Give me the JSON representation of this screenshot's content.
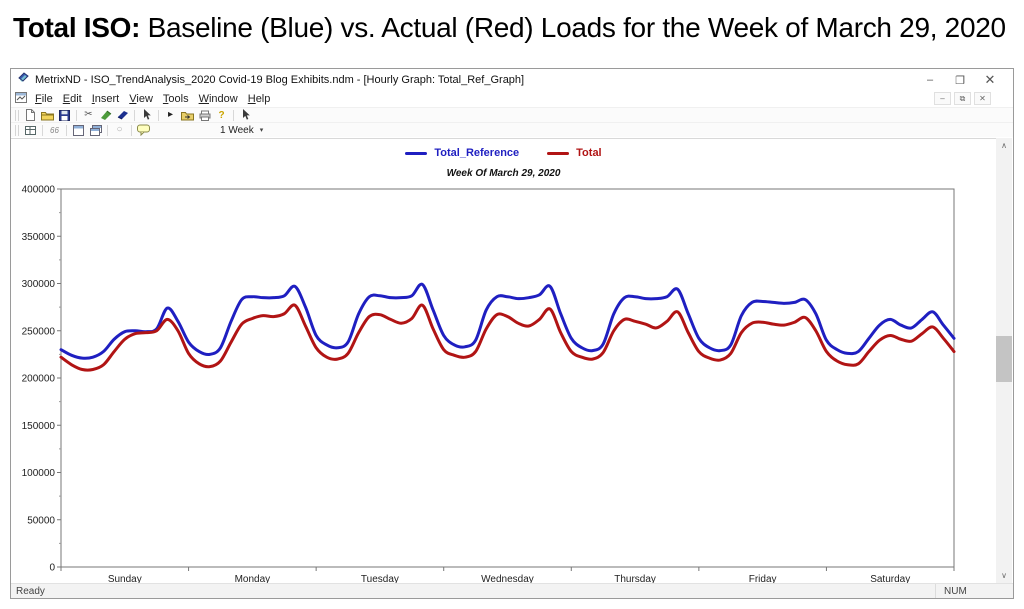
{
  "page": {
    "heading_bold": "Total ISO:",
    "heading_rest": " Baseline (Blue) vs. Actual (Red) Loads for the Week of March 29, 2020"
  },
  "window": {
    "title": "MetrixND - ISO_TrendAnalysis_2020 Covid-19 Blog Exhibits.ndm - [Hourly Graph: Total_Ref_Graph]",
    "controls": {
      "minimize": "–",
      "restore": "❐",
      "close": "✕"
    },
    "mdi_controls": {
      "minimize": "–",
      "restore": "⧉",
      "close": "✕"
    },
    "menus": [
      "File",
      "Edit",
      "Insert",
      "View",
      "Tools",
      "Window",
      "Help"
    ],
    "toolbar1_icons": [
      "new-document-icon",
      "open-folder-icon",
      "save-icon",
      "cut-icon",
      "transform-icon",
      "model-icon",
      "pointer-icon",
      "run-icon",
      "export-icon",
      "print-icon",
      "help-icon",
      "select-icon"
    ],
    "toolbar2_icons": [
      "grid-properties-icon",
      "quotes-icon",
      "window-icon",
      "window-cascade-icon",
      "disabled-circle-icon",
      "comment-icon"
    ],
    "period_selector": "1 Week",
    "scrollbar": {
      "up": "∧",
      "down": "∨"
    },
    "status": {
      "left": "Ready",
      "right": "NUM"
    }
  },
  "chart_data": {
    "type": "line",
    "title": "Week Of March 29, 2020",
    "x_categories": [
      "Sunday",
      "Monday",
      "Tuesday",
      "Wednesday",
      "Thursday",
      "Friday",
      "Saturday"
    ],
    "x_unit": "hour of week",
    "x_range": [
      0,
      168
    ],
    "x_step": 2,
    "ylim": [
      0,
      400000
    ],
    "y_tick_interval": 50000,
    "y_minor_tick_interval": 25000,
    "grid": false,
    "legend_position": "top-center",
    "legend": [
      {
        "name": "Total_Reference",
        "color": "#1f1fc1"
      },
      {
        "name": "Total",
        "color": "#b11414"
      }
    ],
    "series": [
      {
        "name": "Total_Reference",
        "color": "#1f1fc1",
        "values": [
          230000,
          224000,
          221000,
          222000,
          228000,
          241000,
          249000,
          250000,
          249000,
          252000,
          274000,
          260000,
          238000,
          228000,
          225000,
          232000,
          260000,
          283000,
          286000,
          285000,
          285000,
          287000,
          297000,
          275000,
          245000,
          235000,
          232000,
          238000,
          268000,
          286000,
          287000,
          285000,
          285000,
          287000,
          299000,
          272000,
          245000,
          235000,
          233000,
          240000,
          272000,
          286000,
          286000,
          284000,
          285000,
          288000,
          297000,
          268000,
          242000,
          232000,
          229000,
          236000,
          268000,
          285000,
          286000,
          284000,
          284000,
          286000,
          294000,
          268000,
          242000,
          232000,
          229000,
          235000,
          266000,
          280000,
          281000,
          280000,
          279000,
          280000,
          283000,
          268000,
          240000,
          230000,
          226000,
          228000,
          242000,
          256000,
          262000,
          256000,
          253000,
          262000,
          270000,
          256000,
          242000
        ]
      },
      {
        "name": "Total",
        "color": "#b11414",
        "values": [
          222000,
          214000,
          209000,
          209000,
          214000,
          228000,
          241000,
          247000,
          248000,
          250000,
          262000,
          250000,
          226000,
          215000,
          212000,
          218000,
          238000,
          257000,
          263000,
          266000,
          265000,
          268000,
          277000,
          255000,
          232000,
          222000,
          220000,
          226000,
          248000,
          265000,
          267000,
          262000,
          258000,
          263000,
          277000,
          252000,
          230000,
          224000,
          222000,
          228000,
          252000,
          267000,
          265000,
          258000,
          255000,
          262000,
          273000,
          248000,
          228000,
          222000,
          220000,
          227000,
          250000,
          262000,
          260000,
          257000,
          253000,
          260000,
          270000,
          248000,
          228000,
          221000,
          219000,
          226000,
          248000,
          258000,
          259000,
          257000,
          256000,
          259000,
          264000,
          250000,
          228000,
          218000,
          214000,
          215000,
          228000,
          240000,
          245000,
          241000,
          239000,
          247000,
          254000,
          242000,
          228000
        ]
      }
    ]
  }
}
